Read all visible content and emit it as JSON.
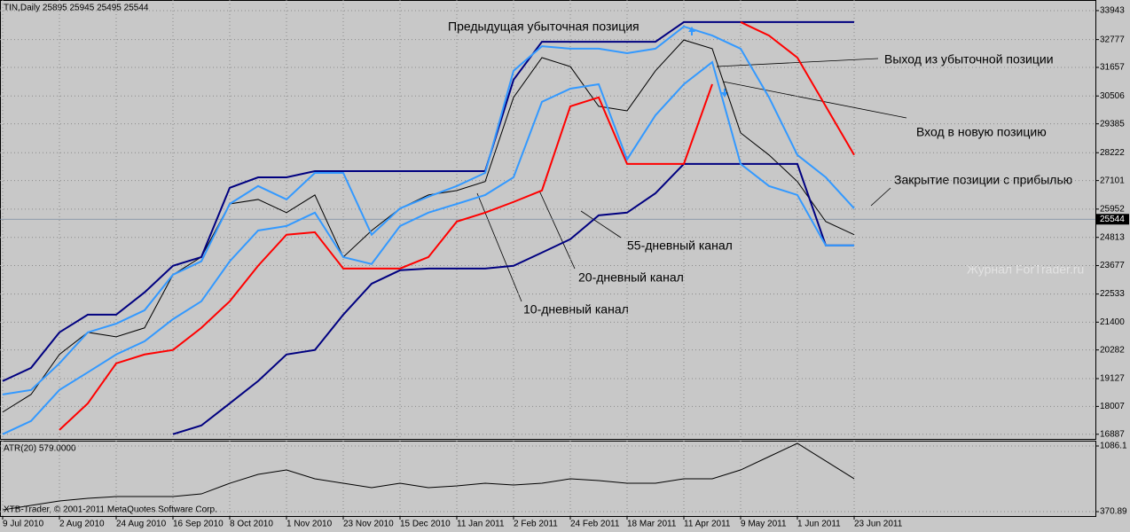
{
  "chart_data": [
    {
      "type": "line",
      "title": "TIN,Daily  25895 25945 25495 25544",
      "categories": [
        "9 Jul 2010",
        null,
        "2 Aug 2010",
        null,
        "24 Aug 2010",
        null,
        "16 Sep 2010",
        null,
        "8 Oct 2010",
        null,
        "1 Nov 2010",
        null,
        "23 Nov 2010",
        null,
        "15 Dec 2010",
        null,
        "11 Jan 2011",
        null,
        "2 Feb 2011",
        null,
        "24 Feb 2011",
        null,
        "18 Mar 2011",
        null,
        "11 Apr 2011",
        null,
        "9 May 2011",
        null,
        "1 Jun 2011",
        null,
        "23 Jun 2011"
      ],
      "series": [
        {
          "color": "#000000",
          "values": [
            17780,
            18490,
            20100,
            20990,
            20810,
            21170,
            23310,
            24020,
            26160,
            26340,
            25810,
            26520,
            24020,
            25090,
            25980,
            26520,
            26700,
            27060,
            30450,
            32050,
            31690,
            30090,
            29910,
            31520,
            32760,
            32410,
            29020,
            28130,
            27060,
            25450,
            24920
          ]
        },
        {
          "color": "#000080",
          "values": [
            19030,
            19560,
            20990,
            21700,
            21700,
            22600,
            23670,
            24020,
            26810,
            27230,
            27230,
            27480,
            27480,
            27480,
            27480,
            27480,
            27480,
            27480,
            31160,
            32690,
            32690,
            32690,
            32690,
            32690,
            33480,
            33480,
            33480,
            33480,
            33480,
            33480,
            33480
          ]
        },
        {
          "color": "#000080",
          "values": [
            null,
            null,
            null,
            null,
            null,
            null,
            16890,
            17240,
            18130,
            19030,
            20100,
            20280,
            21700,
            22950,
            23490,
            23560,
            23560,
            23560,
            23670,
            24200,
            24740,
            25700,
            25810,
            26590,
            27770,
            27770,
            27770,
            27770,
            27770,
            24490,
            24490
          ]
        },
        {
          "color": "#ff0000",
          "values": [
            null,
            null,
            17060,
            18130,
            19740,
            20100,
            20280,
            21170,
            22240,
            23670,
            24920,
            25020,
            23560,
            23560,
            23560,
            24020,
            25450,
            25810,
            26240,
            26700,
            30090,
            30450,
            27770,
            27770,
            27770,
            30980,
            null,
            null,
            null,
            null,
            null
          ]
        },
        {
          "color": "#ff0000",
          "values": [
            null,
            null,
            null,
            null,
            null,
            null,
            null,
            null,
            null,
            null,
            null,
            null,
            null,
            null,
            null,
            null,
            null,
            null,
            null,
            null,
            null,
            null,
            null,
            null,
            null,
            null,
            33480,
            32940,
            32050,
            30090,
            28130
          ]
        },
        {
          "color": "#3399ff",
          "values": [
            18490,
            18670,
            19740,
            20990,
            21340,
            21880,
            23310,
            23850,
            26160,
            26880,
            26340,
            27410,
            27410,
            24920,
            25980,
            26450,
            26880,
            27410,
            31520,
            32510,
            32410,
            32410,
            32230,
            32410,
            33300,
            32940,
            32410,
            30450,
            28130,
            27230,
            25980
          ]
        },
        {
          "color": "#3399ff",
          "values": [
            16890,
            17420,
            18670,
            19380,
            20100,
            20630,
            21520,
            22240,
            23850,
            25090,
            25270,
            25810,
            24020,
            23740,
            25270,
            25810,
            26160,
            26520,
            27230,
            30270,
            30800,
            30980,
            27950,
            29730,
            30980,
            31870,
            27770,
            26880,
            26520,
            24490,
            24490
          ]
        }
      ],
      "ylim": [
        16700,
        34370
      ],
      "yticks": [
        33943,
        32777,
        31657,
        30506,
        29385,
        28222,
        27101,
        25952,
        24813,
        23677,
        22533,
        21400,
        20282,
        19127,
        18007,
        16887
      ],
      "last_price": 25544,
      "grid": true,
      "annotations": [
        "Предыдущая убыточная позиция",
        "Выход из убыточной позиции",
        "Вход в новую позицию",
        "Закрытие позиции с прибылью",
        "55-дневный канал",
        "20-дневный канал",
        "10-дневный канал"
      ],
      "watermark": "Журнал ForTrader.ru"
    },
    {
      "type": "line",
      "title": "ATR(20) 579.0000",
      "color": "#000000",
      "values": [
        390,
        439,
        487,
        516,
        535,
        535,
        535,
        564,
        680,
        777,
        825,
        729,
        680,
        632,
        680,
        632,
        651,
        680,
        661,
        680,
        729,
        709,
        680,
        680,
        729,
        729,
        825,
        970,
        1115,
        922,
        729
      ],
      "ylim": [
        323,
        1144
      ],
      "yticks": [
        1086.1,
        370.89
      ],
      "grid": true,
      "footer": "XTB-Trader, © 2001-2011 MetaQuotes Software Corp."
    }
  ]
}
